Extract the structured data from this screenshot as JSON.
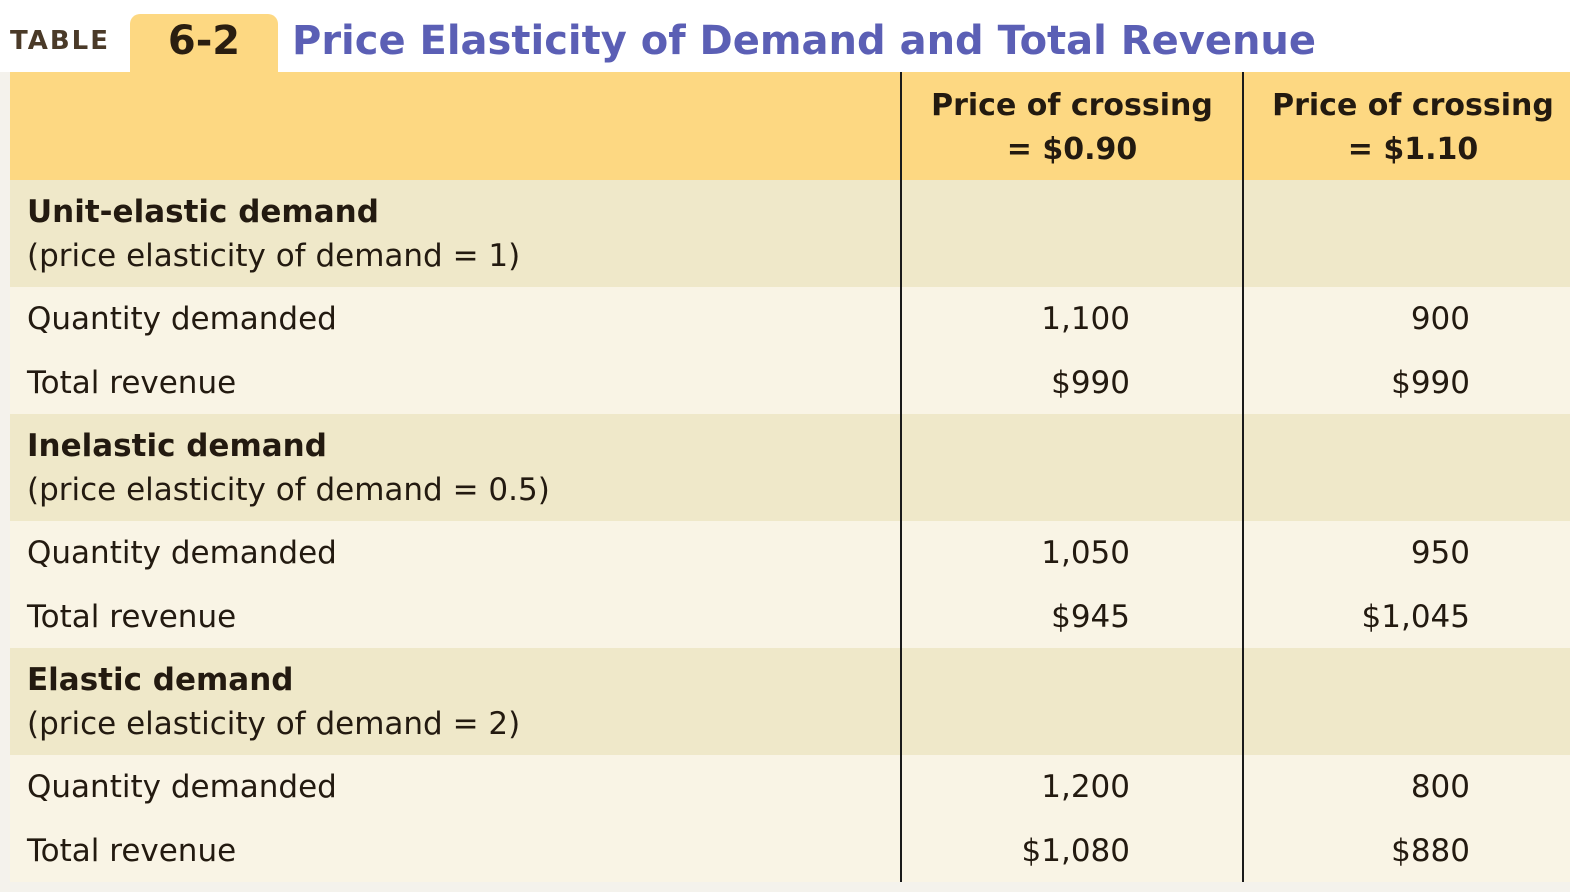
{
  "header": {
    "label": "TABLE",
    "number": "6-2",
    "title": "Price Elasticity of Demand and Total Revenue"
  },
  "table": {
    "columns": [
      [
        "Price of crossing",
        "= $0.90"
      ],
      [
        "Price of crossing",
        "= $1.10"
      ]
    ],
    "sections": [
      {
        "title": "Unit-elastic demand",
        "subtitle": "(price elasticity of demand = 1)",
        "rows": [
          [
            "Quantity demanded",
            "1,100",
            "900"
          ],
          [
            "Total revenue",
            "$990",
            "$990"
          ]
        ]
      },
      {
        "title": "Inelastic demand",
        "subtitle": "(price elasticity of demand = 0.5)",
        "rows": [
          [
            "Quantity demanded",
            "1,050",
            "950"
          ],
          [
            "Total revenue",
            "$945",
            "$1,045"
          ]
        ]
      },
      {
        "title": "Elastic demand",
        "subtitle": "(price elasticity of demand = 2)",
        "rows": [
          [
            "Quantity demanded",
            "1,200",
            "800"
          ],
          [
            "Total revenue",
            "$1,080",
            "$880"
          ]
        ]
      }
    ]
  }
}
